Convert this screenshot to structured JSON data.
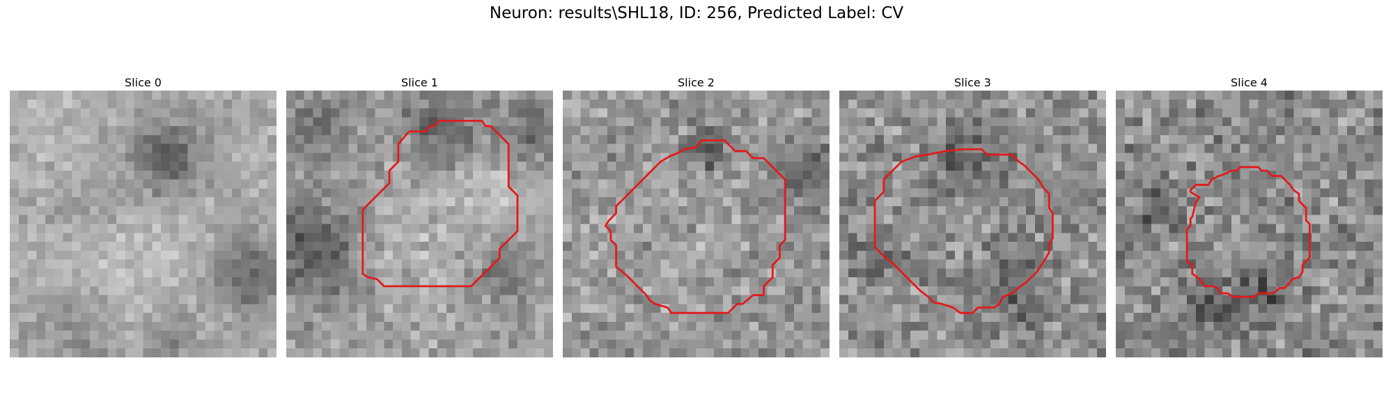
{
  "figure": {
    "title": "Neuron: results\\SHL18, ID: 256, Predicted Label: CV",
    "outline_color": "#e31a1c"
  },
  "panels": [
    {
      "title": "Slice 0",
      "has_outline": false
    },
    {
      "title": "Slice 1",
      "has_outline": true
    },
    {
      "title": "Slice 2",
      "has_outline": true
    },
    {
      "title": "Slice 3",
      "has_outline": true
    },
    {
      "title": "Slice 4",
      "has_outline": true
    }
  ]
}
